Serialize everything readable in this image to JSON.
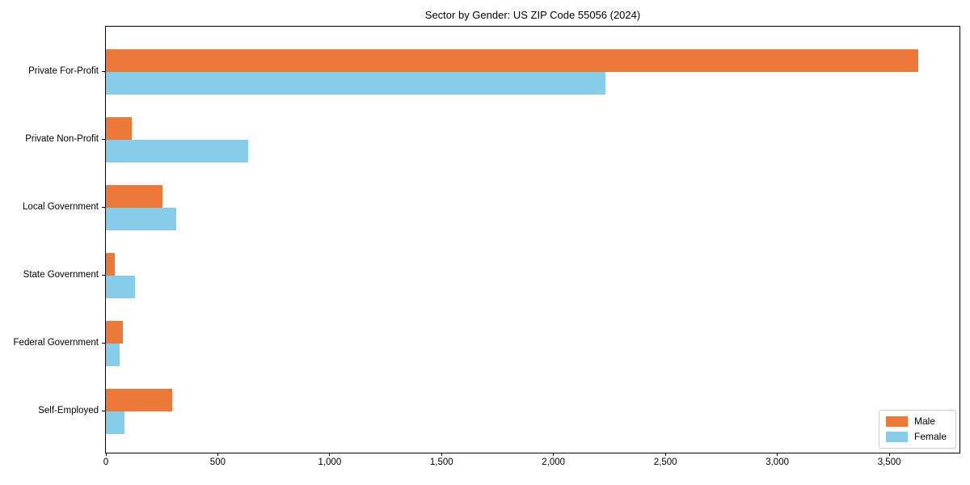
{
  "chart_data": {
    "type": "bar",
    "orientation": "horizontal",
    "title": "Sector by Gender: US ZIP Code 55056 (2024)",
    "categories": [
      "Private For-Profit",
      "Private Non-Profit",
      "Local Government",
      "State Government",
      "Federal Government",
      "Self-Employed"
    ],
    "series": [
      {
        "name": "Male",
        "color": "#EC7839",
        "values": [
          3630,
          116,
          253,
          40,
          76,
          296
        ]
      },
      {
        "name": "Female",
        "color": "#87CDE9",
        "values": [
          2232,
          636,
          314,
          130,
          61,
          83
        ]
      }
    ],
    "xlabel": "",
    "ylabel": "",
    "xlim": [
      0,
      3814
    ],
    "x_ticks": [
      {
        "value": 0,
        "label": "0"
      },
      {
        "value": 500,
        "label": "500"
      },
      {
        "value": 1000,
        "label": "1,000"
      },
      {
        "value": 1500,
        "label": "1,500"
      },
      {
        "value": 2000,
        "label": "2,000"
      },
      {
        "value": 2500,
        "label": "2,500"
      },
      {
        "value": 3000,
        "label": "3,000"
      },
      {
        "value": 3500,
        "label": "3,500"
      }
    ],
    "grid": false,
    "legend": {
      "position": "lower right"
    }
  }
}
